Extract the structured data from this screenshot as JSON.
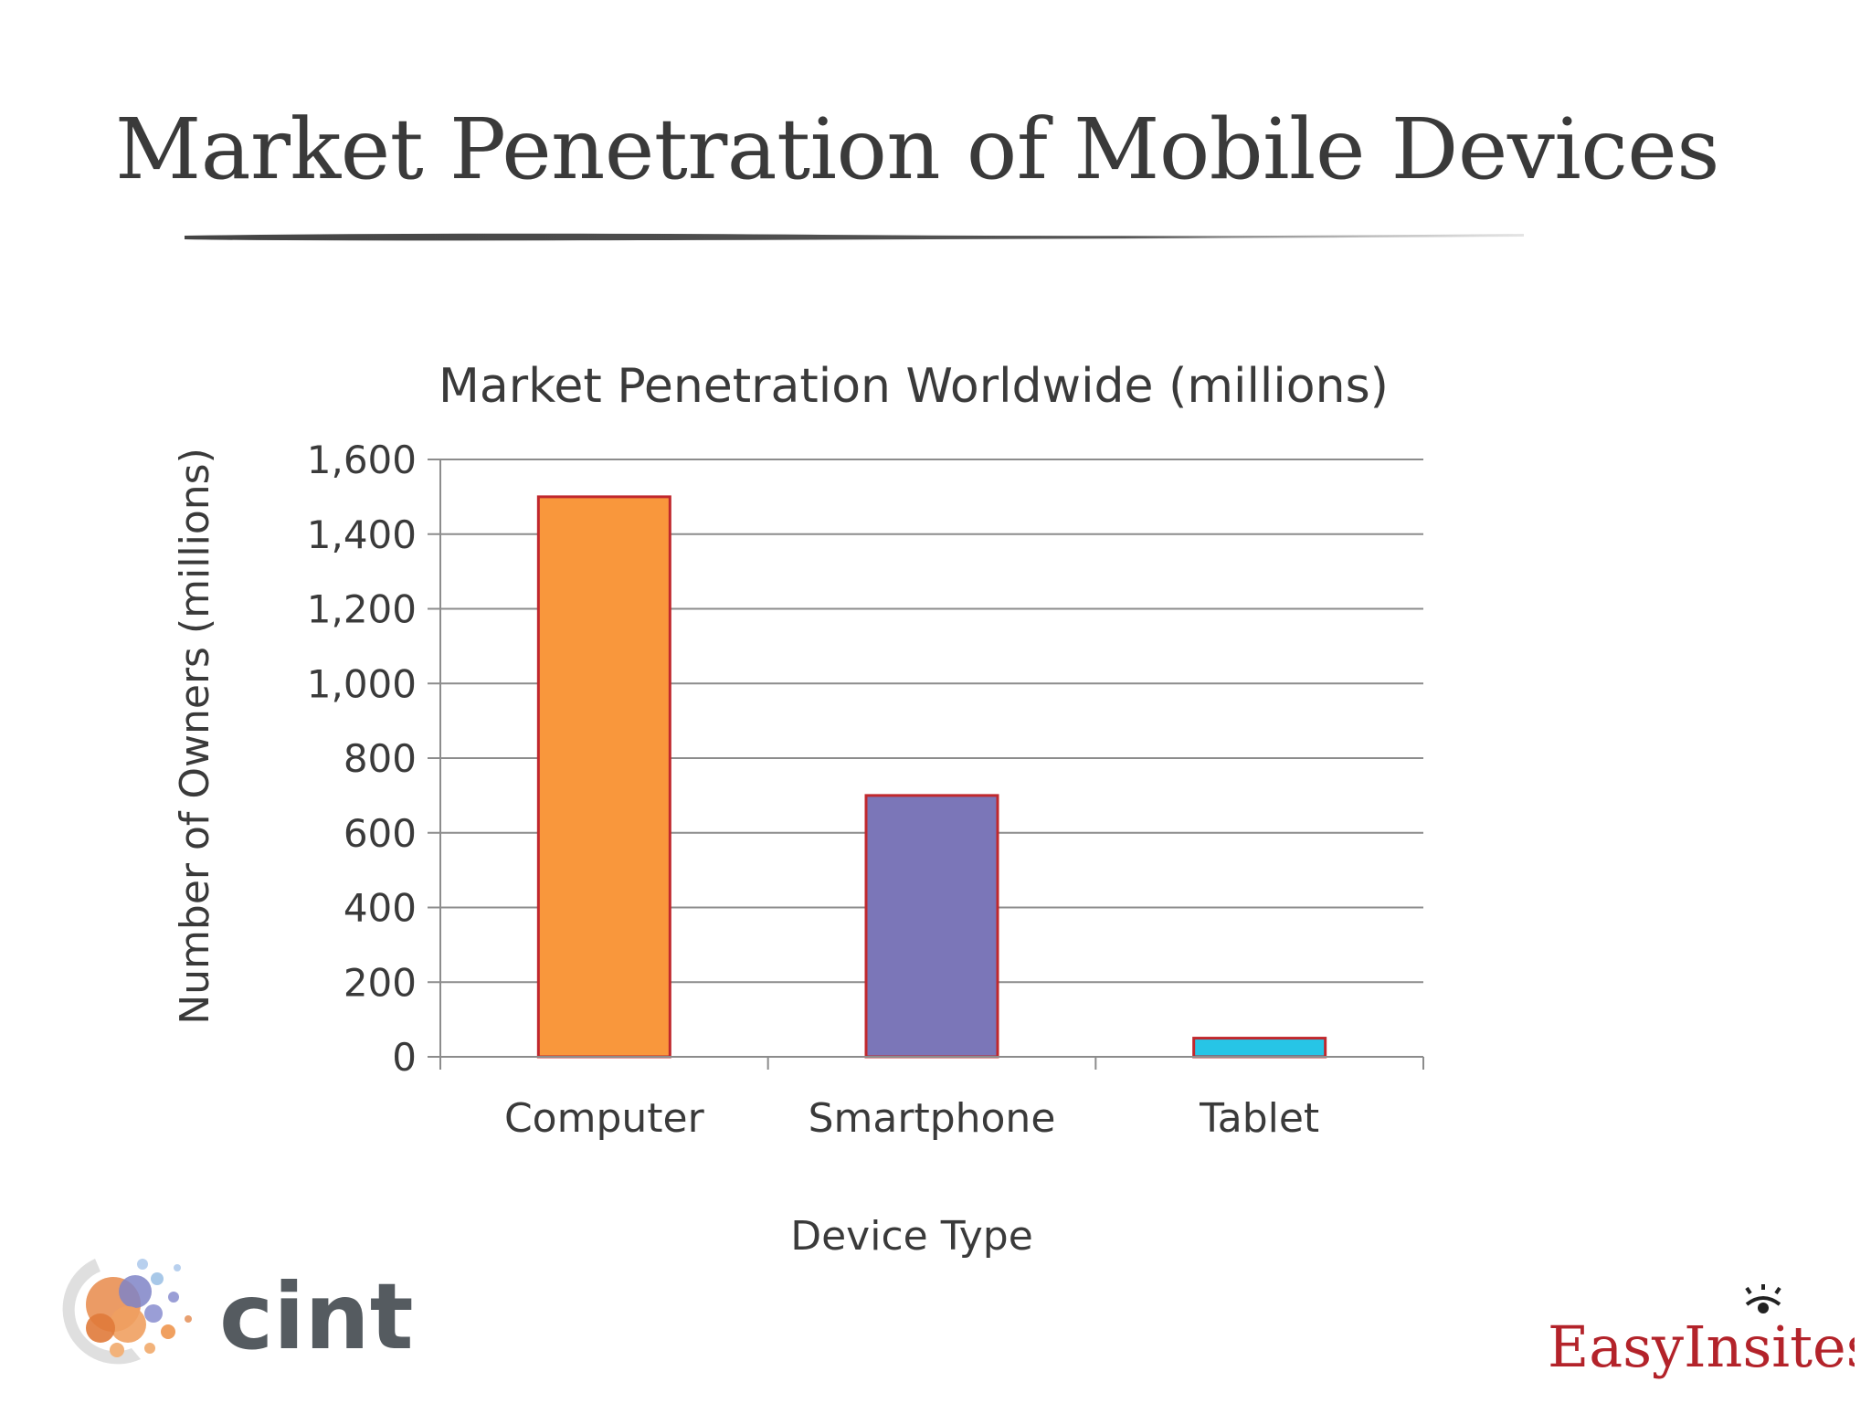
{
  "slide": {
    "title": "Market Penetration of Mobile Devices"
  },
  "colors": {
    "computer": "#f9973c",
    "smartphone": "#7b76b8",
    "tablet": "#27c5e6",
    "bar_border": "#c0282d",
    "grid": "#8c8c8c",
    "text": "#3a3a3a"
  },
  "chart_data": {
    "type": "bar",
    "title": "Market Penetration Worldwide (millions)",
    "xlabel": "Device Type",
    "ylabel": "Number of Owners (millions)",
    "categories": [
      "Computer",
      "Smartphone",
      "Tablet"
    ],
    "values": [
      1500,
      700,
      50
    ],
    "ylim": [
      0,
      1600
    ],
    "yticks": [
      0,
      200,
      400,
      600,
      800,
      1000,
      1200,
      1400,
      1600
    ],
    "ytick_labels": [
      "0",
      "200",
      "400",
      "600",
      "800",
      "1,000",
      "1,200",
      "1,400",
      "1,600"
    ],
    "grid": true,
    "legend": "none"
  },
  "logos": {
    "left": "cint",
    "right": "EasyInsites"
  }
}
